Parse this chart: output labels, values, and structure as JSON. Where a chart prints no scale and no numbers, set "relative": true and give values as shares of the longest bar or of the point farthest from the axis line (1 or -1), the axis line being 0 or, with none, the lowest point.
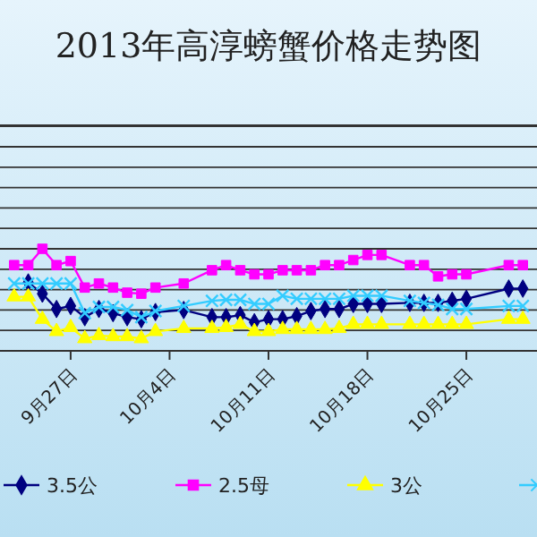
{
  "chart_data": {
    "type": "line",
    "title": "2013年高淳螃蟹价格走势图",
    "relative": true,
    "grid": "y",
    "legend": "bottom",
    "x": [
      "--09-23",
      "--09-24",
      "--09-25",
      "--09-26",
      "--09-27",
      "--09-28",
      "--09-29",
      "--09-30",
      "--10-01",
      "--10-02",
      "--10-03",
      "--10-05",
      "--10-07",
      "--10-08",
      "--10-09",
      "--10-10",
      "--10-11",
      "--10-12",
      "--10-13",
      "--10-14",
      "--10-15",
      "--10-16",
      "--10-17",
      "--10-18",
      "--10-19",
      "--10-21",
      "--10-22",
      "--10-23",
      "--10-24",
      "--10-25",
      "--10-28",
      "--10-29"
    ],
    "xlim": [
      "--09-22",
      "--10-30"
    ],
    "xticks": [
      {
        "value": "--09-27",
        "label": "9月27日"
      },
      {
        "value": "--10-04",
        "label": "10月4日"
      },
      {
        "value": "--10-11",
        "label": "10月11日"
      },
      {
        "value": "--10-18",
        "label": "10月18日"
      },
      {
        "value": "--10-25",
        "label": "10月25日"
      }
    ],
    "series": [
      {
        "name": "3.5公",
        "color": "#000080",
        "marker": "diamond",
        "values": [
          null,
          0.67,
          0.56,
          0.41,
          0.44,
          0.33,
          0.41,
          0.37,
          0.33,
          0.31,
          0.38,
          0.4,
          0.33,
          0.33,
          0.35,
          0.28,
          0.31,
          0.31,
          0.34,
          0.39,
          0.41,
          0.41,
          0.46,
          0.46,
          0.46,
          0.47,
          0.47,
          0.47,
          0.49,
          0.51,
          0.61,
          0.61
        ]
      },
      {
        "name": "2.5母",
        "color": "#ff00ff",
        "marker": "square",
        "values": [
          0.84,
          0.84,
          1.0,
          0.84,
          0.88,
          0.62,
          0.66,
          0.62,
          0.57,
          0.56,
          0.62,
          0.66,
          0.79,
          0.84,
          0.79,
          0.75,
          0.75,
          0.79,
          0.79,
          0.79,
          0.84,
          0.84,
          0.89,
          0.94,
          0.94,
          0.84,
          0.84,
          0.73,
          0.75,
          0.75,
          0.84,
          0.84
        ]
      },
      {
        "name": "3公",
        "color": "#ffff00",
        "marker": "triangle",
        "values": [
          0.53,
          0.53,
          0.31,
          0.19,
          0.23,
          0.12,
          0.15,
          0.14,
          0.14,
          0.12,
          0.19,
          0.22,
          0.22,
          0.23,
          0.26,
          0.19,
          0.19,
          0.21,
          0.21,
          0.21,
          0.21,
          0.22,
          0.26,
          0.26,
          0.26,
          0.26,
          0.26,
          0.26,
          0.26,
          0.26,
          0.31,
          0.31
        ]
      },
      {
        "color": "#33ccff",
        "marker": "cross",
        "values": [
          0.66,
          0.66,
          0.66,
          0.66,
          0.66,
          0.37,
          0.43,
          0.43,
          0.4,
          0.33,
          0.39,
          0.44,
          0.49,
          0.5,
          0.5,
          0.46,
          0.46,
          0.54,
          0.51,
          0.51,
          0.51,
          0.51,
          0.54,
          0.54,
          0.54,
          0.49,
          0.47,
          0.45,
          0.41,
          0.41,
          0.44,
          0.44
        ]
      }
    ]
  }
}
